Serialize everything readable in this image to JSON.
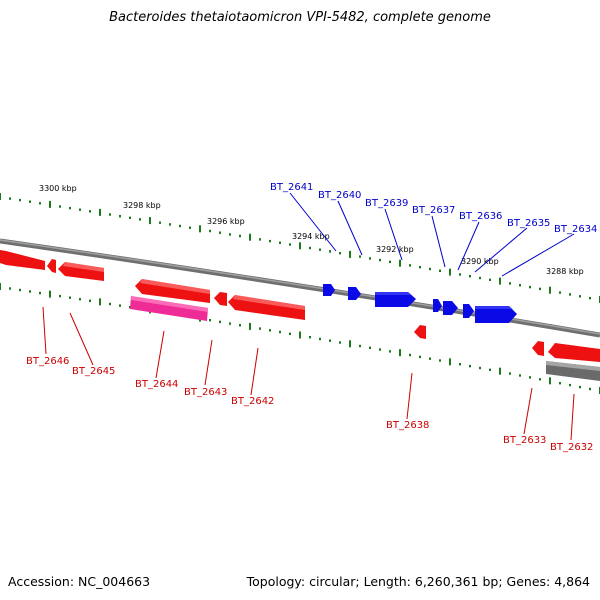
{
  "title": "Bacteroides thetaiotaomicron VPI-5482, complete genome",
  "footer": {
    "accession": "Accession: NC_004663",
    "summary": "Topology: circular; Length: 6,260,361 bp; Genes: 4,864"
  },
  "colors": {
    "forward_gene": "#0a0ae6",
    "reverse_gene": "#ee1111",
    "highlight_gene": "#ee2b96",
    "backbone": "#7f7f7f",
    "tick": "#1c7a1c"
  },
  "kbp_labels": [
    "3300 kbp",
    "3298 kbp",
    "3296 kbp",
    "3294 kbp",
    "3292 kbp",
    "3290 kbp",
    "3288 kbp"
  ],
  "forward_genes": [
    "BT_2641",
    "BT_2640",
    "BT_2639",
    "BT_2637",
    "BT_2636",
    "BT_2635",
    "BT_2634"
  ],
  "reverse_genes": [
    "BT_2646",
    "BT_2645",
    "BT_2644",
    "BT_2643",
    "BT_2642",
    "BT_2638",
    "BT_2633",
    "BT_2632"
  ]
}
